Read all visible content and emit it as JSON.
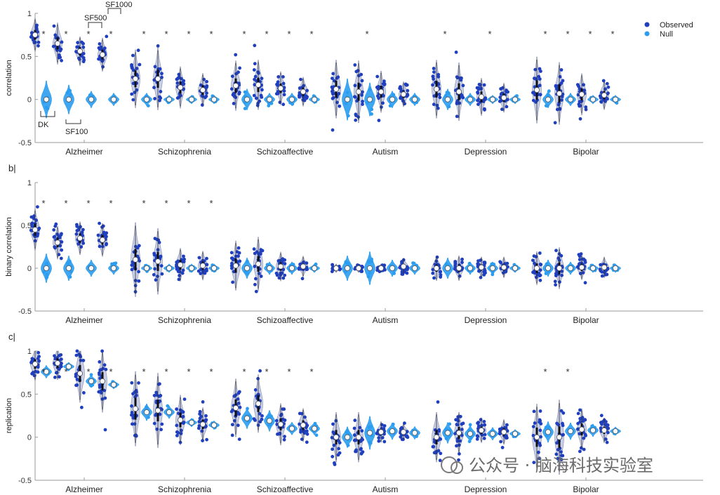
{
  "colors": {
    "observed": "#1f3fbf",
    "null": "#2a9df0",
    "violin_observed": "#9aa7d6",
    "axis": "#9a9a9a",
    "text": "#222222"
  },
  "legend": {
    "observed": "Observed",
    "null": "Null",
    "placement": "top-right"
  },
  "annotations": {
    "dk": "DK",
    "sf100": "SF100",
    "sf500": "SF500",
    "sf1000": "SF1000"
  },
  "watermark": "公众号 · 脑海科技实验室",
  "chart_data": [
    {
      "type": "violin",
      "panel": "a",
      "panel_label": "",
      "ylabel": "correlation",
      "ylim": [
        -0.5,
        1
      ],
      "yticks": [
        -0.5,
        0,
        0.5,
        1
      ],
      "yticklabels": [
        "-0.5",
        "0",
        "0.5",
        "1"
      ],
      "categories": [
        "Alzheimer",
        "Schizophrenia",
        "Schizoaffective",
        "Autism",
        "Depression",
        "Bipolar"
      ],
      "parcellations": [
        "DK",
        "SF100",
        "SF500",
        "SF1000"
      ],
      "series": [
        {
          "name": "Observed",
          "medians": [
            [
              0.75,
              0.65,
              0.56,
              0.52
            ],
            [
              0.24,
              0.24,
              0.14,
              0.11
            ],
            [
              0.16,
              0.17,
              0.13,
              0.09
            ],
            [
              0.12,
              0.09,
              0.09,
              0.06
            ],
            [
              0.12,
              0.09,
              0.03,
              0.02
            ],
            [
              0.11,
              0.07,
              0.06,
              0.05
            ]
          ],
          "spread": [
            [
              0.08,
              0.1,
              0.07,
              0.08
            ],
            [
              0.14,
              0.15,
              0.1,
              0.08
            ],
            [
              0.12,
              0.12,
              0.08,
              0.07
            ],
            [
              0.14,
              0.15,
              0.1,
              0.06
            ],
            [
              0.14,
              0.14,
              0.09,
              0.07
            ],
            [
              0.16,
              0.15,
              0.1,
              0.07
            ]
          ]
        },
        {
          "name": "Null",
          "medians": [
            [
              0,
              0,
              0,
              0
            ],
            [
              0,
              0,
              0,
              0
            ],
            [
              0,
              0,
              0,
              0
            ],
            [
              0,
              0,
              0,
              0
            ],
            [
              0,
              0,
              0,
              0
            ],
            [
              0,
              0,
              0,
              0
            ]
          ],
          "spread": [
            [
              0.09,
              0.07,
              0.04,
              0.03
            ],
            [
              0.03,
              0.02,
              0.02,
              0.02
            ],
            [
              0.05,
              0.03,
              0.03,
              0.02
            ],
            [
              0.1,
              0.08,
              0.04,
              0.03
            ],
            [
              0.05,
              0.03,
              0.02,
              0.02
            ],
            [
              0.04,
              0.03,
              0.02,
              0.02
            ]
          ]
        }
      ],
      "significant": [
        [
          true,
          true,
          true,
          true
        ],
        [
          true,
          true,
          true,
          true
        ],
        [
          true,
          true,
          true,
          true
        ],
        [
          false,
          true,
          false,
          false
        ],
        [
          true,
          false,
          true,
          false
        ],
        [
          true,
          true,
          true,
          true
        ]
      ]
    },
    {
      "type": "violin",
      "panel": "b",
      "panel_label": "b|",
      "ylabel": "binary correlation",
      "ylim": [
        -0.5,
        1
      ],
      "yticks": [
        -0.5,
        0,
        0.5,
        1
      ],
      "yticklabels": [
        "-0.5",
        "0",
        "0.5",
        "1"
      ],
      "categories": [
        "Alzheimer",
        "Schizophrenia",
        "Schizoaffective",
        "Autism",
        "Depression",
        "Bipolar"
      ],
      "parcellations": [
        "DK",
        "SF100",
        "SF500",
        "SF1000"
      ],
      "series": [
        {
          "name": "Observed",
          "medians": [
            [
              0.45,
              0.3,
              0.35,
              0.33
            ],
            [
              0.1,
              0.08,
              0.04,
              0.03
            ],
            [
              0.03,
              0.05,
              0.02,
              0.02
            ],
            [
              0.0,
              0.0,
              0.0,
              0.02
            ],
            [
              0.0,
              0.0,
              0.01,
              0.01
            ],
            [
              0.0,
              0.0,
              0.01,
              0.01
            ]
          ],
          "spread": [
            [
              0.1,
              0.08,
              0.08,
              0.08
            ],
            [
              0.18,
              0.16,
              0.08,
              0.07
            ],
            [
              0.12,
              0.13,
              0.07,
              0.05
            ],
            [
              0.02,
              0.02,
              0.02,
              0.04
            ],
            [
              0.06,
              0.06,
              0.05,
              0.05
            ],
            [
              0.08,
              0.1,
              0.06,
              0.05
            ]
          ]
        },
        {
          "name": "Null",
          "medians": [
            [
              0,
              0,
              0,
              0
            ],
            [
              0,
              0,
              0,
              0
            ],
            [
              0,
              0,
              0,
              0
            ],
            [
              0,
              0,
              0,
              0
            ],
            [
              0,
              0,
              0,
              0
            ],
            [
              0,
              0,
              0,
              0
            ]
          ],
          "spread": [
            [
              0.07,
              0.06,
              0.04,
              0.03
            ],
            [
              0.02,
              0.02,
              0.02,
              0.02
            ],
            [
              0.05,
              0.03,
              0.03,
              0.02
            ],
            [
              0.06,
              0.08,
              0.04,
              0.03
            ],
            [
              0.05,
              0.03,
              0.03,
              0.02
            ],
            [
              0.04,
              0.03,
              0.02,
              0.02
            ]
          ]
        }
      ],
      "significant": [
        [
          true,
          true,
          true,
          true
        ],
        [
          true,
          true,
          true,
          true
        ],
        [
          false,
          false,
          false,
          false
        ],
        [
          false,
          false,
          false,
          false
        ],
        [
          false,
          false,
          false,
          false
        ],
        [
          false,
          false,
          false,
          false
        ]
      ]
    },
    {
      "type": "violin",
      "panel": "c",
      "panel_label": "c|",
      "ylabel": "replication",
      "ylim": [
        -0.5,
        1
      ],
      "yticks": [
        -0.5,
        0,
        0.5,
        1
      ],
      "yticklabels": [
        "-0.5",
        "0",
        "0.5",
        "1"
      ],
      "categories": [
        "Alzheimer",
        "Schizophrenia",
        "Schizoaffective",
        "Autism",
        "Depression",
        "Bipolar"
      ],
      "parcellations": [
        "DK",
        "SF100",
        "SF500",
        "SF1000"
      ],
      "series": [
        {
          "name": "Observed",
          "medians": [
            [
              0.85,
              0.86,
              0.74,
              0.65
            ],
            [
              0.33,
              0.31,
              0.2,
              0.15
            ],
            [
              0.34,
              0.39,
              0.15,
              0.14
            ],
            [
              0.0,
              0.0,
              0.06,
              0.06
            ],
            [
              0.0,
              0.05,
              0.08,
              0.06
            ],
            [
              0.0,
              0.0,
              0.09,
              0.08
            ]
          ],
          "spread": [
            [
              0.08,
              0.08,
              0.14,
              0.15
            ],
            [
              0.18,
              0.18,
              0.12,
              0.08
            ],
            [
              0.14,
              0.14,
              0.1,
              0.08
            ],
            [
              0.12,
              0.12,
              0.05,
              0.04
            ],
            [
              0.12,
              0.1,
              0.06,
              0.06
            ],
            [
              0.16,
              0.18,
              0.1,
              0.06
            ]
          ]
        },
        {
          "name": "Null",
          "medians": [
            [
              0.76,
              0.82,
              0.65,
              0.61
            ],
            [
              0.29,
              0.29,
              0.17,
              0.14
            ],
            [
              0.22,
              0.19,
              0.1,
              0.1
            ],
            [
              0.0,
              0.05,
              0.07,
              0.05
            ],
            [
              0.05,
              0.04,
              0.04,
              0.04
            ],
            [
              0.06,
              0.07,
              0.08,
              0.07
            ]
          ],
          "spread": [
            [
              0.03,
              0.02,
              0.03,
              0.02
            ],
            [
              0.04,
              0.03,
              0.02,
              0.02
            ],
            [
              0.05,
              0.05,
              0.03,
              0.03
            ],
            [
              0.05,
              0.08,
              0.04,
              0.03
            ],
            [
              0.05,
              0.04,
              0.03,
              0.02
            ],
            [
              0.05,
              0.04,
              0.03,
              0.02
            ]
          ]
        }
      ],
      "significant": [
        [
          true,
          true,
          true,
          true
        ],
        [
          true,
          true,
          true,
          true
        ],
        [
          true,
          true,
          true,
          true
        ],
        [
          false,
          false,
          false,
          false
        ],
        [
          false,
          false,
          false,
          false
        ],
        [
          true,
          true,
          false,
          false
        ]
      ]
    }
  ]
}
